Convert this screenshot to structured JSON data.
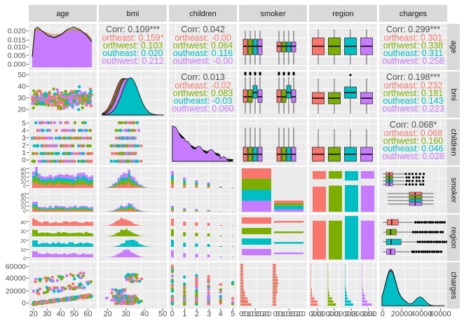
{
  "chart_data": {
    "type": "scatter-matrix",
    "variables": [
      "age",
      "bmi",
      "children",
      "smoker",
      "region",
      "charges"
    ],
    "group_variable": "region",
    "groups": [
      "northeast",
      "northwest",
      "southeast",
      "southwest"
    ],
    "colors": {
      "northeast": "#F8766D",
      "northwest": "#7CAE00",
      "southeast": "#00BFC4",
      "southwest": "#C77CFF"
    },
    "correlations": [
      {
        "row": "age",
        "col": "children",
        "overall": "Corr: 0.042",
        "groups": [
          "ortheast: -0.00",
          "orthwest: 0.064",
          "outheast: 0.116",
          "outhwest: -0.00"
        ]
      },
      {
        "row": "age",
        "col": "bmi",
        "overall": "Corr: 0.109***",
        "groups": [
          "ortheast: 0.159*",
          "orthwest: 0.103",
          "outheast: 0.020",
          "outhwest: 0.212"
        ]
      },
      {
        "row": "age",
        "col": "charges",
        "overall": "Corr: 0.299***",
        "groups": [
          "ortheast: 0.301",
          "orthwest: 0.338",
          "outheast: 0.311",
          "outhwest: 0.258"
        ]
      },
      {
        "row": "bmi",
        "col": "children",
        "overall": "Corr: 0.013",
        "groups": [
          "ortheast: -0.02",
          "orthwest: 0.083",
          "outheast: -0.03",
          "outhwest: 0.060"
        ]
      },
      {
        "row": "bmi",
        "col": "charges",
        "overall": "Corr: 0.198***",
        "groups": [
          "ortheast: 0.232",
          "orthwest: 0.181",
          "outheast: 0.143",
          "outhwest: 0.223"
        ]
      },
      {
        "row": "children",
        "col": "charges",
        "overall": "Corr: 0.068*",
        "groups": [
          "ortheast: 0.068",
          "orthwest: 0.160",
          "outheast: 0.046",
          "outhwest: 0.028"
        ]
      }
    ],
    "y_tick_labels": {
      "age": [
        "0.020",
        "0.015",
        "0.010",
        "0.005",
        "0.000"
      ],
      "bmi": [
        "50",
        "40",
        "30",
        "20"
      ],
      "children": [
        "5",
        "4",
        "3",
        "2",
        "1",
        "0"
      ],
      "smoker": [
        "40",
        "30",
        "20",
        "10",
        "0",
        "40",
        "30",
        "20",
        "10",
        "0"
      ],
      "region": [
        "40",
        "30",
        "20",
        "10",
        "0"
      ],
      "charges": [
        "60000",
        "40000",
        "20000",
        "0"
      ]
    },
    "x_tick_labels": {
      "age": [
        "20",
        "30",
        "40",
        "50",
        "60"
      ],
      "bmi": [
        "20",
        "30",
        "40",
        "50"
      ],
      "children": [
        "0",
        "1",
        "2",
        "3",
        "4",
        "5"
      ],
      "smoker": [
        "050100150200",
        "050100150200"
      ],
      "region": [
        "0204060",
        "0204060",
        "0204060",
        "0204060"
      ],
      "charges": [
        "0",
        "20000",
        "40000",
        "60000"
      ]
    },
    "age_density": {
      "x": [
        18,
        20,
        22,
        25,
        30,
        35,
        40,
        45,
        50,
        55,
        60,
        64
      ],
      "y": [
        0.006,
        0.019,
        0.02,
        0.019,
        0.017,
        0.016,
        0.017,
        0.019,
        0.02,
        0.019,
        0.017,
        0.014
      ]
    },
    "smoker_counts": {
      "no": [
        257,
        267,
        273,
        267
      ],
      "yes": [
        67,
        58,
        91,
        58
      ]
    },
    "region_counts": [
      324,
      325,
      364,
      325
    ],
    "charges_summary": {
      "median": [
        10058,
        8966,
        9294,
        8799
      ],
      "q1": [
        5194,
        4719,
        4441,
        4751
      ],
      "q3": [
        16687,
        14712,
        19526,
        13463
      ]
    }
  }
}
